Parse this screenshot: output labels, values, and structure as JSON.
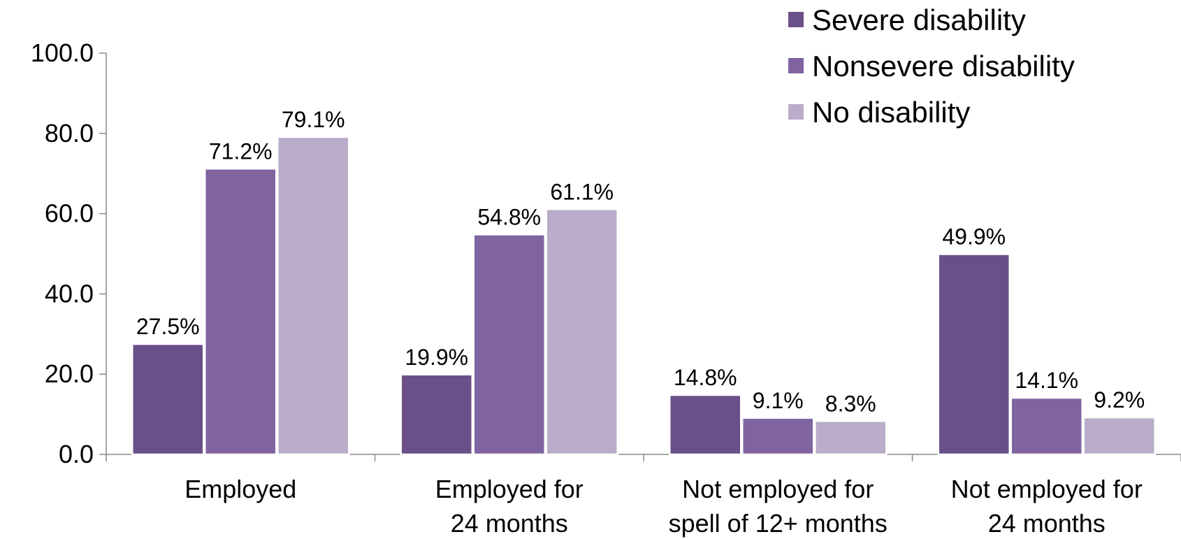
{
  "chart_data": {
    "type": "bar",
    "title": "",
    "xlabel": "",
    "ylabel": "",
    "ylim": [
      0,
      100
    ],
    "yticks": [
      "0.0",
      "20.0",
      "40.0",
      "60.0",
      "80.0",
      "100.0"
    ],
    "ytick_values": [
      0,
      20,
      40,
      60,
      80,
      100
    ],
    "grid": false,
    "legend_position": "top-right",
    "categories": [
      [
        "Employed"
      ],
      [
        "Employed for",
        "24 months"
      ],
      [
        "Not employed for",
        "spell of 12+ months"
      ],
      [
        "Not employed for",
        "24 months"
      ]
    ],
    "series": [
      {
        "name": "Severe disability",
        "color": "#6a5088",
        "values": [
          27.5,
          19.9,
          14.8,
          49.9
        ],
        "labels": [
          "27.5%",
          "19.9%",
          "14.8%",
          "49.9%"
        ]
      },
      {
        "name": "Nonsevere disability",
        "color": "#8064a2",
        "values": [
          71.2,
          54.8,
          9.1,
          14.1
        ],
        "labels": [
          "71.2%",
          "54.8%",
          "9.1%",
          "14.1%"
        ]
      },
      {
        "name": "No disability",
        "color": "#b9adc9",
        "values": [
          79.1,
          61.1,
          8.3,
          9.2
        ],
        "labels": [
          "79.1%",
          "61.1%",
          "8.3%",
          "9.2%"
        ]
      }
    ]
  }
}
